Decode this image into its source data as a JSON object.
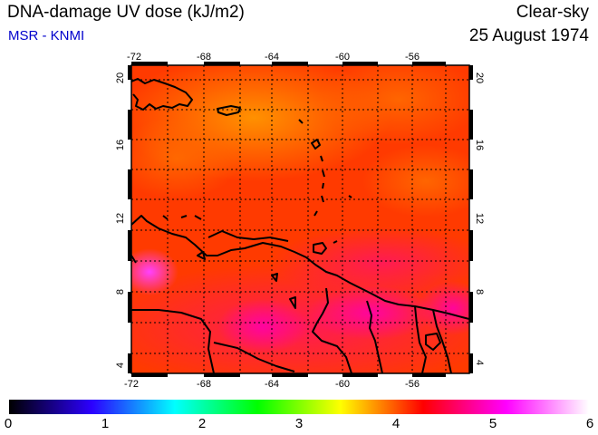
{
  "header": {
    "title": "DNA-damage UV dose (kJ/m2)",
    "source": "MSR - KNMI",
    "condition": "Clear-sky",
    "date": "25 August 1974"
  },
  "map": {
    "lon_ticks": [
      "-72",
      "-68",
      "-64",
      "-60",
      "-56"
    ],
    "lat_ticks": [
      "4",
      "8",
      "12",
      "16",
      "20"
    ],
    "region": "Caribbean",
    "field_color": "#ff3a00",
    "coast_color": "#000000"
  },
  "colorbar": {
    "labels": [
      "0",
      "1",
      "2",
      "3",
      "4",
      "5",
      "6"
    ],
    "colors": [
      "#000000",
      "#2c00ff",
      "#00ffff",
      "#00ff00",
      "#ffff00",
      "#ff0000",
      "#ff00ff",
      "#ffffff"
    ]
  }
}
